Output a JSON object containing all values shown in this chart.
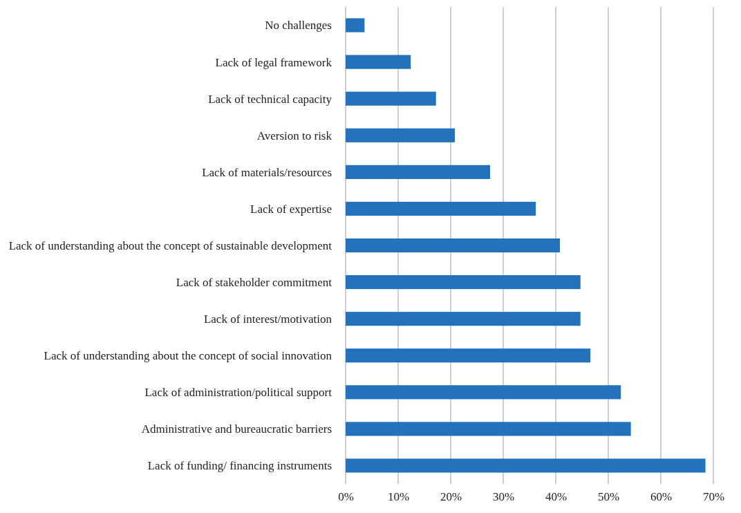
{
  "chart_data": {
    "type": "bar",
    "orientation": "horizontal",
    "categories": [
      "No challenges",
      "Lack of legal framework",
      "Lack of technical capacity",
      "Aversion to risk",
      "Lack of materials/resources",
      "Lack of expertise",
      "Lack of understanding about the concept of sustainable development",
      "Lack of stakeholder commitment",
      "Lack of interest/motivation",
      "Lack of understanding about the concept of social innovation",
      "Lack of administration/political support",
      "Administrative and bureaucratic barriers",
      "Lack of funding/ financing instruments"
    ],
    "values": [
      3.6,
      12.4,
      17.2,
      20.8,
      27.5,
      36.2,
      40.8,
      44.7,
      44.7,
      46.6,
      52.4,
      54.3,
      68.5
    ],
    "color": "#2372bb",
    "xlim": [
      0,
      70
    ],
    "xticks": [
      {
        "value": 0,
        "label": "0%"
      },
      {
        "value": 10,
        "label": "10%"
      },
      {
        "value": 20,
        "label": "20%"
      },
      {
        "value": 30,
        "label": "30%"
      },
      {
        "value": 40,
        "label": "40%"
      },
      {
        "value": 50,
        "label": "50%"
      },
      {
        "value": 60,
        "label": "60%"
      },
      {
        "value": 70,
        "label": "70%"
      }
    ],
    "grid": "x"
  }
}
